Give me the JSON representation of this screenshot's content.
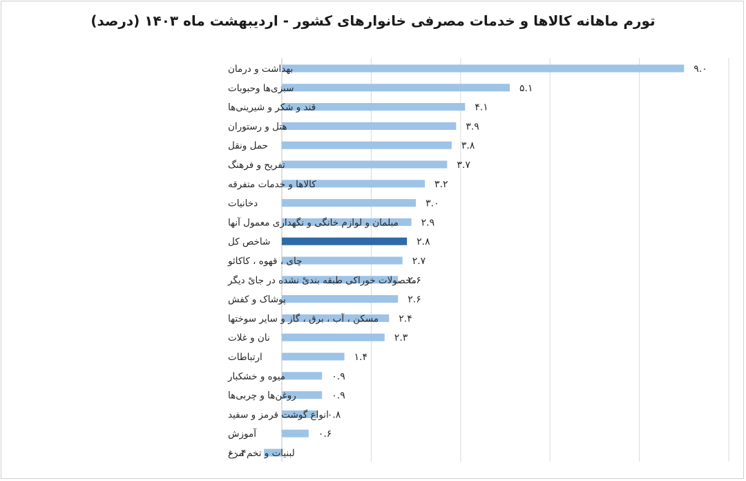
{
  "chart_data": {
    "type": "bar",
    "orientation": "horizontal",
    "title": "تورم ماهانه کالاها و خدمات مصرفی خانوارهای کشور - اردیبهشت ماه ۱۴۰۳ (درصد)",
    "xlabel": "",
    "ylabel": "",
    "xlim": [
      -0.4,
      9.4
    ],
    "grid": "vertical",
    "legend": "none",
    "colors": {
      "bar": "#9dc3e6",
      "highlight": "#2e6aa8",
      "grid": "#d9d9d9",
      "axis": "#bfbfbf"
    },
    "highlight_category": "شاخص کل",
    "categories": [
      "بهداشت و درمان",
      "سبزی‌ها وحبوبات",
      "قند و شکر و شیرینی‌ها",
      "هتل و رستوران",
      "حمل ونقل",
      "تفریح و فرهنگ",
      "کالاها و خدمات متفرقه",
      "دخانیات",
      "مبلمان و لوازم خانگی و نگهداری معمول آنها",
      "شاخص کل",
      "چای ، قهوه ، کاکائو",
      "محصولات خوراکی طبقه بندیْ نشده در جایْ دیگر",
      "پوشاک و کفش",
      "مسکن ، آب ، برق ، گاز و سایر سوختها",
      "نان و غلات",
      "ارتباطات",
      "میوه و خشکبار",
      "روغن‌ها و چربی‌ها",
      "انواع گوشت قرمز و سفید",
      "آموزش",
      "لبنیات و تخم مرغ"
    ],
    "values": [
      9.0,
      5.1,
      4.1,
      3.9,
      3.8,
      3.7,
      3.2,
      3.0,
      2.9,
      2.8,
      2.7,
      2.6,
      2.6,
      2.4,
      2.3,
      1.4,
      0.9,
      0.9,
      0.8,
      0.6,
      -0.4
    ],
    "value_labels": [
      "۹.۰",
      "۵.۱",
      "۴.۱",
      "۳.۹",
      "۳.۸",
      "۳.۷",
      "۳.۲",
      "۳.۰",
      "۲.۹",
      "۲.۸",
      "۲.۷",
      "۲.۶",
      "۲.۶",
      "۲.۴",
      "۲.۳",
      "۱.۴",
      "۰.۹",
      "۰.۹",
      "۰.۸",
      "۰.۶",
      "-۰.۴"
    ]
  }
}
